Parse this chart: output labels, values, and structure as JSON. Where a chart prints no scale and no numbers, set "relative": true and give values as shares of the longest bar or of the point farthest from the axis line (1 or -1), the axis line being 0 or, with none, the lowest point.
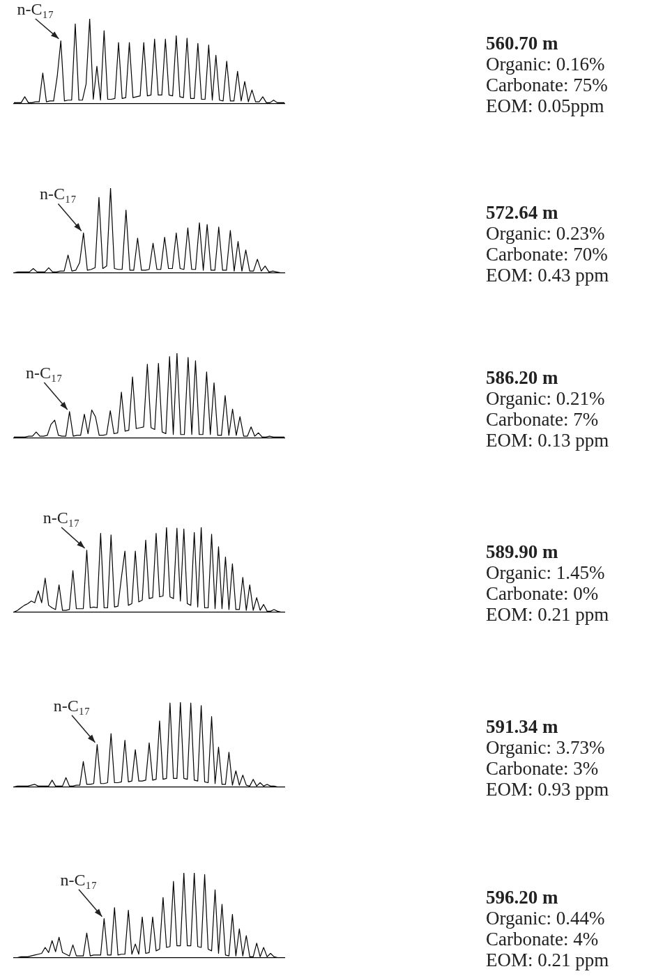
{
  "chart_data": [
    {
      "type": "line",
      "relative": true,
      "marker": "none",
      "categories": [
        null,
        null,
        null,
        null,
        null,
        null,
        null,
        null,
        null,
        null,
        null,
        null,
        null,
        null,
        null,
        null,
        null,
        null,
        null,
        null,
        null,
        null,
        null,
        null,
        null,
        null,
        null,
        null,
        null,
        null,
        null,
        null,
        null,
        null,
        null,
        null,
        null,
        null,
        null,
        null,
        null,
        null,
        null,
        null,
        null,
        null,
        null,
        null,
        null,
        null,
        null,
        null,
        null,
        null,
        null,
        null,
        null,
        null,
        null,
        null,
        null,
        null,
        null,
        null,
        null,
        null,
        null,
        null,
        null,
        null,
        null,
        null,
        null,
        null,
        null,
        null
      ],
      "series": [
        {
          "color": "#000000",
          "values": [
            0.01,
            0.01,
            0.01,
            0.08,
            0.01,
            0.01,
            0.02,
            0.02,
            0.36,
            0.02,
            0.03,
            0.03,
            0.32,
            0.74,
            0.03,
            0.04,
            0.04,
            0.94,
            0.04,
            0.04,
            0.23,
            1,
            0.05,
            0.44,
            0.04,
            0.86,
            0.05,
            0.05,
            0.06,
            0.72,
            0.06,
            0.07,
            0.72,
            0.07,
            0.08,
            0.09,
            0.72,
            0.09,
            0.1,
            0.76,
            0.1,
            0.1,
            0.76,
            0.1,
            0.09,
            0.8,
            0.08,
            0.07,
            0.77,
            0.06,
            0.06,
            0.71,
            0.05,
            0.05,
            0.69,
            0.04,
            0.57,
            0.04,
            0.03,
            0.5,
            0.03,
            0.03,
            0.38,
            0.03,
            0.26,
            0.02,
            0.16,
            0.02,
            0.02,
            0.08,
            0.01,
            0.01,
            0.04,
            0.01,
            0.01,
            0.01
          ]
        }
      ],
      "annotations": [
        "n-C₁₇",
        "560.70 m",
        "Organic: 0.16%",
        "Carbonate: 75%",
        "EOM: 0.05ppm"
      ]
    },
    {
      "type": "line",
      "relative": true,
      "marker": "none",
      "categories": [
        null,
        null,
        null,
        null,
        null,
        null,
        null,
        null,
        null,
        null,
        null,
        null,
        null,
        null,
        null,
        null,
        null,
        null,
        null,
        null,
        null,
        null,
        null,
        null,
        null,
        null,
        null,
        null,
        null,
        null,
        null,
        null,
        null,
        null,
        null,
        null,
        null,
        null,
        null,
        null,
        null,
        null,
        null,
        null,
        null,
        null,
        null,
        null,
        null,
        null,
        null,
        null,
        null,
        null,
        null,
        null,
        null,
        null,
        null,
        null,
        null,
        null,
        null,
        null,
        null,
        null,
        null,
        null,
        null,
        null,
        null
      ],
      "series": [
        {
          "color": "#000000",
          "values": [
            0,
            0.01,
            0.01,
            0.01,
            0.01,
            0.05,
            0.01,
            0.01,
            0.01,
            0.06,
            0.01,
            0.01,
            0.02,
            0.02,
            0.21,
            0.02,
            0.03,
            0.12,
            0.47,
            0.03,
            0.04,
            0.06,
            0.89,
            0.05,
            0.08,
            1,
            0.05,
            0.04,
            0.04,
            0.74,
            0.03,
            0.03,
            0.41,
            0.03,
            0.03,
            0.04,
            0.35,
            0.04,
            0.04,
            0.42,
            0.05,
            0.05,
            0.47,
            0.05,
            0.04,
            0.53,
            0.04,
            0.04,
            0.59,
            0.03,
            0.57,
            0.03,
            0.03,
            0.54,
            0.03,
            0.03,
            0.5,
            0.02,
            0.37,
            0.02,
            0.27,
            0.02,
            0.02,
            0.16,
            0.02,
            0.08,
            0.01,
            0.02,
            0.01,
            0,
            0
          ]
        }
      ],
      "annotations": [
        "n-C₁₇",
        "572.64 m",
        "Organic: 0.23%",
        "Carbonate: 70%",
        "EOM: 0.43 ppm"
      ]
    },
    {
      "type": "line",
      "relative": true,
      "marker": "none",
      "categories": [
        null,
        null,
        null,
        null,
        null,
        null,
        null,
        null,
        null,
        null,
        null,
        null,
        null,
        null,
        null,
        null,
        null,
        null,
        null,
        null,
        null,
        null,
        null,
        null,
        null,
        null,
        null,
        null,
        null,
        null,
        null,
        null,
        null,
        null,
        null,
        null,
        null,
        null,
        null,
        null,
        null,
        null,
        null,
        null,
        null,
        null,
        null,
        null,
        null,
        null,
        null,
        null,
        null,
        null,
        null,
        null,
        null,
        null,
        null,
        null,
        null,
        null,
        null,
        null,
        null,
        null,
        null,
        null,
        null,
        null,
        null,
        null,
        null,
        null
      ],
      "series": [
        {
          "color": "#000000",
          "values": [
            0.01,
            0.01,
            0.01,
            0.01,
            0.02,
            0.02,
            0.07,
            0.02,
            0.02,
            0.03,
            0.16,
            0.21,
            0.03,
            0.02,
            0.02,
            0.31,
            0.02,
            0.03,
            0.03,
            0.28,
            0.05,
            0.33,
            0.25,
            0.03,
            0.03,
            0.04,
            0.32,
            0.05,
            0.06,
            0.54,
            0.08,
            0.09,
            0.72,
            0.11,
            0.12,
            0.13,
            0.87,
            0.12,
            0.1,
            0.88,
            0.07,
            0.05,
            0.96,
            0.04,
            1,
            0.04,
            0.04,
            0.95,
            0.04,
            0.91,
            0.04,
            0.04,
            0.78,
            0.04,
            0.65,
            0.03,
            0.03,
            0.5,
            0.03,
            0.34,
            0.03,
            0.25,
            0.02,
            0.02,
            0.13,
            0.02,
            0.06,
            0.01,
            0.01,
            0.02,
            0.01,
            0.01,
            0.01,
            0.01
          ]
        }
      ],
      "annotations": [
        "n-C₁₇",
        "586.20 m",
        "Organic: 0.21%",
        "Carbonate: 7%",
        "EOM: 0.13 ppm"
      ]
    },
    {
      "type": "line",
      "relative": true,
      "marker": "none",
      "categories": [
        null,
        null,
        null,
        null,
        null,
        null,
        null,
        null,
        null,
        null,
        null,
        null,
        null,
        null,
        null,
        null,
        null,
        null,
        null,
        null,
        null,
        null,
        null,
        null,
        null,
        null,
        null,
        null,
        null,
        null,
        null,
        null,
        null,
        null,
        null,
        null,
        null,
        null,
        null,
        null,
        null,
        null,
        null,
        null,
        null,
        null,
        null,
        null,
        null,
        null,
        null,
        null,
        null,
        null,
        null,
        null,
        null,
        null,
        null,
        null,
        null,
        null,
        null,
        null,
        null,
        null,
        null,
        null,
        null,
        null,
        null,
        null,
        null,
        null,
        null,
        null,
        null,
        null,
        null
      ],
      "series": [
        {
          "color": "#000000",
          "values": [
            0,
            0.02,
            0.05,
            0.08,
            0.1,
            0.13,
            0.11,
            0.25,
            0.11,
            0.4,
            0.08,
            0.05,
            0.03,
            0.32,
            0.02,
            0.02,
            0.03,
            0.49,
            0.04,
            0.04,
            0.04,
            0.73,
            0.05,
            0.06,
            0.05,
            0.93,
            0.05,
            0.05,
            0.91,
            0.06,
            0.07,
            0.41,
            0.72,
            0.08,
            0.1,
            0.72,
            0.12,
            0.14,
            0.85,
            0.16,
            0.17,
            0.93,
            0.18,
            0.19,
            1,
            0.18,
            0.16,
            0.99,
            0.13,
            0.98,
            0.1,
            0.08,
            0.94,
            0.06,
            1,
            0.05,
            0.05,
            0.92,
            0.04,
            0.77,
            0.04,
            0.65,
            0.03,
            0.57,
            0.03,
            0.03,
            0.41,
            0.02,
            0.32,
            0.02,
            0.17,
            0.02,
            0.09,
            0.01,
            0.01,
            0.03,
            0.01,
            0,
            0
          ]
        }
      ],
      "annotations": [
        "n-C₁₇",
        "589.90 m",
        "Organic: 1.45%",
        "Carbonate: 0%",
        "EOM: 0.21 ppm"
      ]
    },
    {
      "type": "line",
      "relative": true,
      "marker": "none",
      "categories": [
        null,
        null,
        null,
        null,
        null,
        null,
        null,
        null,
        null,
        null,
        null,
        null,
        null,
        null,
        null,
        null,
        null,
        null,
        null,
        null,
        null,
        null,
        null,
        null,
        null,
        null,
        null,
        null,
        null,
        null,
        null,
        null,
        null,
        null,
        null,
        null,
        null,
        null,
        null,
        null,
        null,
        null,
        null,
        null,
        null,
        null,
        null,
        null,
        null,
        null,
        null,
        null,
        null,
        null,
        null,
        null,
        null,
        null,
        null,
        null,
        null,
        null,
        null,
        null,
        null,
        null,
        null,
        null,
        null,
        null,
        null,
        null,
        null,
        null,
        null,
        null,
        null,
        null,
        null
      ],
      "series": [
        {
          "color": "#000000",
          "values": [
            0,
            0.01,
            0.01,
            0.01,
            0.01,
            0.02,
            0.03,
            0.01,
            0.01,
            0.01,
            0.01,
            0.08,
            0.01,
            0.01,
            0.01,
            0.11,
            0.01,
            0.01,
            0.02,
            0.02,
            0.3,
            0.03,
            0.03,
            0.04,
            0.5,
            0.04,
            0.04,
            0.05,
            0.63,
            0.05,
            0.05,
            0.06,
            0.55,
            0.06,
            0.07,
            0.44,
            0.07,
            0.07,
            0.08,
            0.52,
            0.08,
            0.09,
            0.78,
            0.09,
            0.1,
            0.99,
            0.1,
            0.1,
            1,
            0.1,
            0.09,
            0.99,
            0.08,
            0.07,
            0.96,
            0.06,
            0.05,
            0.83,
            0.04,
            0.47,
            0.03,
            0.03,
            0.41,
            0.02,
            0.19,
            0.02,
            0.14,
            0.02,
            0.01,
            0.09,
            0.01,
            0.05,
            0.01,
            0.03,
            0.01,
            0.01,
            0,
            0,
            0
          ]
        }
      ],
      "annotations": [
        "n-C₁₇",
        "591.34 m",
        "Organic: 3.73%",
        "Carbonate: 3%",
        "EOM: 0.93 ppm"
      ]
    },
    {
      "type": "line",
      "relative": true,
      "marker": "none",
      "categories": [
        null,
        null,
        null,
        null,
        null,
        null,
        null,
        null,
        null,
        null,
        null,
        null,
        null,
        null,
        null,
        null,
        null,
        null,
        null,
        null,
        null,
        null,
        null,
        null,
        null,
        null,
        null,
        null,
        null,
        null,
        null,
        null,
        null,
        null,
        null,
        null,
        null,
        null,
        null,
        null,
        null,
        null,
        null,
        null,
        null,
        null,
        null,
        null,
        null,
        null,
        null,
        null,
        null,
        null,
        null,
        null,
        null,
        null,
        null,
        null,
        null,
        null,
        null,
        null,
        null,
        null,
        null,
        null,
        null,
        null,
        null,
        null,
        null,
        null,
        null,
        null,
        null,
        null,
        null
      ],
      "series": [
        {
          "color": "#000000",
          "values": [
            0,
            0,
            0.01,
            0.01,
            0.01,
            0.02,
            0.03,
            0.04,
            0.05,
            0.12,
            0.06,
            0.2,
            0.07,
            0.24,
            0.06,
            0.04,
            0.02,
            0.15,
            0.02,
            0.02,
            0.02,
            0.29,
            0.02,
            0.03,
            0.03,
            0.03,
            0.46,
            0.03,
            0.03,
            0.59,
            0.03,
            0.04,
            0.04,
            0.56,
            0.04,
            0.16,
            0.04,
            0.48,
            0.05,
            0.06,
            0.48,
            0.08,
            0.1,
            0.71,
            0.12,
            0.13,
            0.9,
            0.14,
            0.14,
            1,
            0.14,
            0.14,
            1,
            0.13,
            0.12,
            0.98,
            0.1,
            0.08,
            0.8,
            0.05,
            0.63,
            0.03,
            0.02,
            0.51,
            0.02,
            0.34,
            0.02,
            0.26,
            0.01,
            0.01,
            0.17,
            0.01,
            0.12,
            0.01,
            0.05,
            0.01,
            0,
            0,
            0
          ]
        }
      ],
      "annotations": [
        "n-C₁₇",
        "596.20 m",
        "Organic: 0.44%",
        "Carbonate: 4%",
        "EOM: 0.21 ppm"
      ]
    }
  ]
}
